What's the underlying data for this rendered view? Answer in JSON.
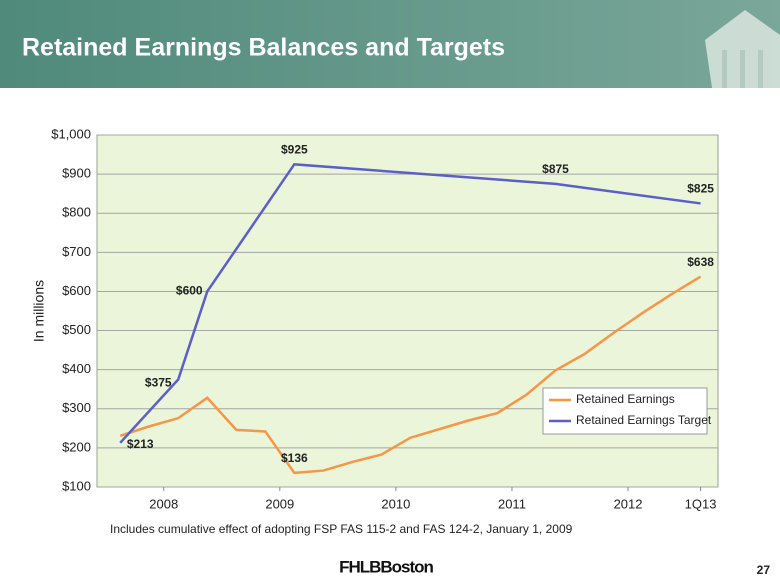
{
  "header": {
    "title": "Retained Earnings Balances and Targets"
  },
  "chart_data": {
    "type": "line",
    "ylabel": "In millions",
    "x": [
      2008.0,
      2008.25,
      2008.5,
      2008.75,
      2009.0,
      2009.25,
      2009.5,
      2009.75,
      2010.0,
      2010.25,
      2010.5,
      2010.75,
      2011.0,
      2011.25,
      2011.5,
      2011.75,
      2012.0,
      2012.25,
      2012.5,
      2012.75,
      2013.0
    ],
    "xlim": [
      2007.8,
      2013.15
    ],
    "xticks": [
      {
        "value": 2008.375,
        "label": "2008"
      },
      {
        "value": 2009.375,
        "label": "2009"
      },
      {
        "value": 2010.375,
        "label": "2010"
      },
      {
        "value": 2011.375,
        "label": "2011"
      },
      {
        "value": 2012.375,
        "label": "2012"
      },
      {
        "value": 2013.0,
        "label": "1Q13"
      }
    ],
    "ylim": [
      100,
      1000
    ],
    "yticks": [
      {
        "value": 100,
        "label": "$100"
      },
      {
        "value": 200,
        "label": "$200"
      },
      {
        "value": 300,
        "label": "$300"
      },
      {
        "value": 400,
        "label": "$400"
      },
      {
        "value": 500,
        "label": "$500"
      },
      {
        "value": 600,
        "label": "$600"
      },
      {
        "value": 700,
        "label": "$700"
      },
      {
        "value": 800,
        "label": "$800"
      },
      {
        "value": 900,
        "label": "$900"
      },
      {
        "value": 1000,
        "label": "$1,000"
      }
    ],
    "grid": true,
    "legend": "lower right",
    "series": [
      {
        "name": "Retained Earnings",
        "color": "#f79646",
        "values": [
          231,
          255,
          276,
          328,
          246,
          242,
          136,
          142,
          164,
          183,
          226,
          248,
          270,
          289,
          336,
          398,
          440,
          494,
          545,
          593,
          638
        ],
        "value_labels": [
          null,
          null,
          null,
          null,
          null,
          null,
          "$136",
          null,
          null,
          null,
          null,
          null,
          null,
          null,
          null,
          null,
          null,
          null,
          null,
          null,
          "$638"
        ]
      },
      {
        "name": "Retained Earnings Target",
        "color": "#5b5fc7",
        "x": [
          2008.0,
          2008.5,
          2008.75,
          2009.5,
          2011.75,
          2013.0
        ],
        "values": [
          213,
          375,
          600,
          925,
          875,
          825
        ],
        "value_labels": [
          "$213",
          "$375",
          "$600",
          "$925",
          "$875",
          "$825"
        ]
      }
    ]
  },
  "footnote": "Includes cumulative effect of adopting FSP FAS 115-2 and FAS 124-2, January 1, 2009",
  "footer": {
    "logo": "FHLBBoston",
    "page": "27"
  }
}
